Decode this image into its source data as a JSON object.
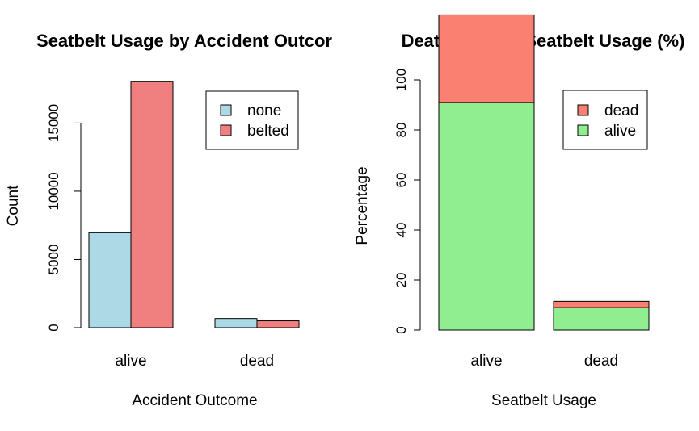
{
  "chart_data": [
    {
      "type": "bar",
      "title": "Seatbelt Usage by Accident Outcor",
      "xlabel": "Accident Outcome",
      "ylabel": "Count",
      "categories": [
        "alive",
        "dead"
      ],
      "series": [
        {
          "name": "none",
          "color": "#add8e6",
          "values": [
            6960,
            670
          ]
        },
        {
          "name": "belted",
          "color": "#f08080",
          "values": [
            18060,
            500
          ]
        }
      ],
      "yticks": [
        "0",
        "5000",
        "10000",
        "15000"
      ],
      "ylim": [
        0,
        18100
      ],
      "legend_position": "top-right",
      "grid": false
    },
    {
      "type": "bar",
      "stacked": true,
      "title": "Death Rate by Seatbelt Usage (%)",
      "xlabel": "Seatbelt Usage",
      "ylabel": "Percentage",
      "categories": [
        "alive",
        "dead"
      ],
      "series": [
        {
          "name": "alive",
          "color": "#90ee90",
          "values": [
            91,
            9
          ]
        },
        {
          "name": "dead",
          "color": "#fa8072",
          "values": [
            35,
            2.5
          ]
        }
      ],
      "legend_order": [
        "dead",
        "alive"
      ],
      "yticks": [
        "0",
        "20",
        "40",
        "60",
        "80",
        "100"
      ],
      "ylim": [
        0,
        126
      ],
      "legend_position": "top-right",
      "grid": false
    }
  ]
}
